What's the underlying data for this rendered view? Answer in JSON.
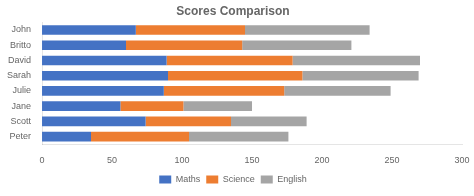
{
  "chart_data": {
    "type": "bar",
    "orientation": "horizontal",
    "stacked": true,
    "title": "Scores Comparison",
    "categories": [
      "Peter",
      "Scott",
      "Jane",
      "Julie",
      "Sarah",
      "David",
      "Britto",
      "John"
    ],
    "series": [
      {
        "name": "Maths",
        "color": "#4472c4",
        "values": [
          35,
          74,
          56,
          87,
          90,
          89,
          60,
          67
        ]
      },
      {
        "name": "Science",
        "color": "#ed7d31",
        "values": [
          70,
          61,
          45,
          86,
          96,
          90,
          83,
          78
        ]
      },
      {
        "name": "English",
        "color": "#a5a5a5",
        "values": [
          71,
          54,
          49,
          76,
          83,
          91,
          78,
          89
        ]
      }
    ],
    "xlim": [
      0,
      300
    ],
    "xticks": [
      0,
      50,
      100,
      150,
      200,
      250,
      300
    ],
    "grid": false,
    "legend": "bottom"
  }
}
